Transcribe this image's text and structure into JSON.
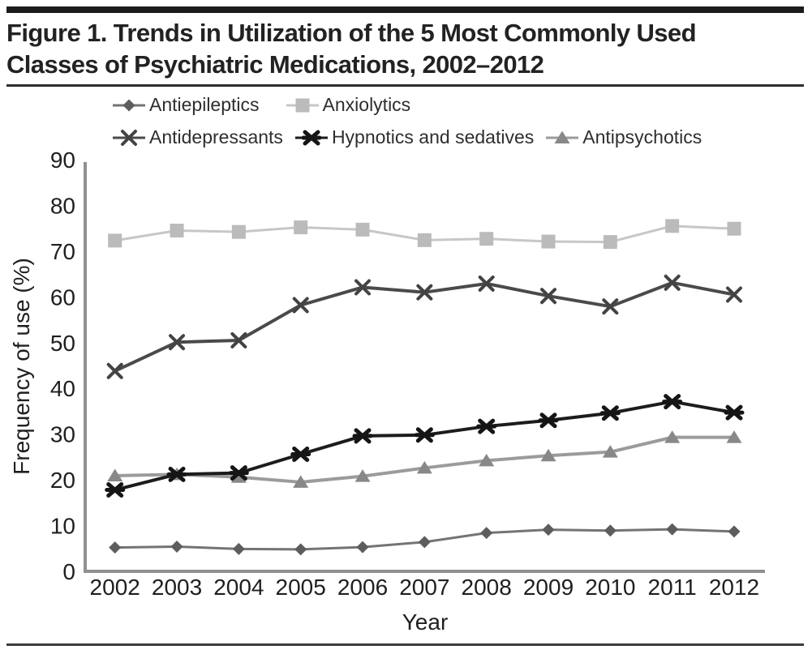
{
  "figure": {
    "title_line1": "Figure 1. Trends in Utilization of the 5 Most Commonly Used",
    "title_line2": "Classes of Psychiatric Medications, 2002–2012"
  },
  "colors": {
    "axis": "#909090",
    "tick_text": "#1f1f1f",
    "rule_dark": "#1b1b1b"
  },
  "chart_data": {
    "type": "line",
    "title": "Figure 1. Trends in Utilization of the 5 Most Commonly Used Classes of Psychiatric Medications, 2002–2012",
    "x": [
      2002,
      2003,
      2004,
      2005,
      2006,
      2007,
      2008,
      2009,
      2010,
      2011,
      2012
    ],
    "xlabel": "Year",
    "ylabel": "Frequency of use (%)",
    "ylim": [
      0,
      90
    ],
    "yticks": [
      0,
      10,
      20,
      30,
      40,
      50,
      60,
      70,
      80,
      90
    ],
    "grid": false,
    "legend_position": "top",
    "series": [
      {
        "name": "Antiepileptics",
        "marker": "diamond",
        "color": "#5d5d5d",
        "line_color": "#747474",
        "line_width": 3,
        "values": [
          5.2,
          5.4,
          4.9,
          4.8,
          5.3,
          6.4,
          8.4,
          9.1,
          8.9,
          9.2,
          8.7
        ]
      },
      {
        "name": "Anxiolytics",
        "marker": "square",
        "color": "#bbbbbb",
        "line_color": "#c7c7c7",
        "line_width": 3,
        "values": [
          72.3,
          74.5,
          74.2,
          75.2,
          74.7,
          72.4,
          72.7,
          72.1,
          72.0,
          75.5,
          74.9
        ]
      },
      {
        "name": "Antidepressants",
        "marker": "x",
        "color": "#434343",
        "line_color": "#4a4a4a",
        "line_width": 4,
        "values": [
          43.8,
          50.1,
          50.5,
          58.2,
          62.1,
          61.0,
          62.9,
          60.2,
          57.9,
          63.1,
          60.5
        ]
      },
      {
        "name": "Hypnotics and sedatives",
        "marker": "asterisk",
        "color": "#151515",
        "line_color": "#1c1c1c",
        "line_width": 4,
        "values": [
          17.8,
          21.2,
          21.5,
          25.6,
          29.6,
          29.8,
          31.7,
          33.0,
          34.6,
          37.1,
          34.7
        ]
      },
      {
        "name": "Antipsychotics",
        "marker": "triangle",
        "color": "#888888",
        "line_color": "#9b9b9b",
        "line_width": 4,
        "values": [
          20.9,
          21.2,
          20.6,
          19.5,
          20.8,
          22.6,
          24.2,
          25.3,
          26.1,
          29.3,
          29.3
        ]
      }
    ]
  }
}
